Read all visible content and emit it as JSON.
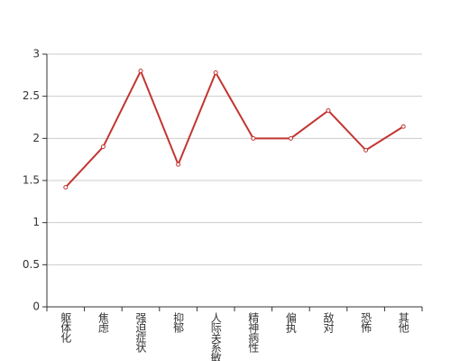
{
  "chart_data": {
    "type": "line",
    "categories": [
      "躯体化",
      "焦虑",
      "强迫症状",
      "抑郁",
      "人际关系敏感",
      "精神病性",
      "偏执",
      "敌对",
      "恐怖",
      "其他"
    ],
    "series": [
      {
        "color": "#c23531",
        "values": [
          1.42,
          1.9,
          2.8,
          1.69,
          2.78,
          2.0,
          2.0,
          2.33,
          1.86,
          2.14
        ]
      }
    ],
    "ylim": [
      0,
      3
    ],
    "yticks": [
      0,
      0.5,
      1,
      1.5,
      2,
      2.5,
      3
    ],
    "grid": true
  }
}
